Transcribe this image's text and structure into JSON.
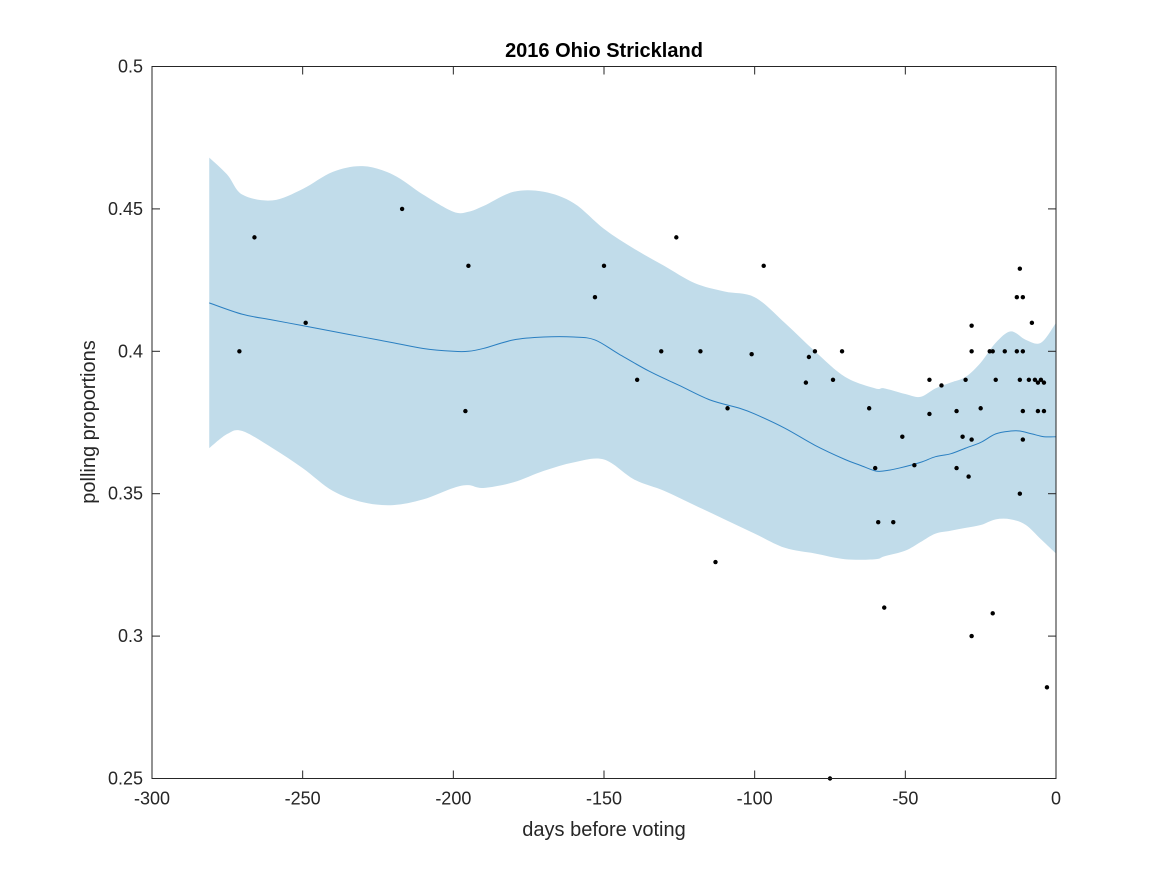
{
  "chart_data": {
    "type": "scatter",
    "title": "2016 Ohio Strickland",
    "xlabel": "days before voting",
    "ylabel": "polling proportions",
    "xlim": [
      -300,
      0
    ],
    "ylim": [
      0.25,
      0.5
    ],
    "xticks": [
      -300,
      -250,
      -200,
      -150,
      -100,
      -50,
      0
    ],
    "yticks": [
      0.25,
      0.3,
      0.35,
      0.4,
      0.45,
      0.5
    ],
    "xtick_labels": [
      "-300",
      "-250",
      "-200",
      "-150",
      "-100",
      "-50",
      "0"
    ],
    "ytick_labels": [
      "0.25",
      "0.3",
      "0.35",
      "0.4",
      "0.45",
      "0.5"
    ],
    "grid": false,
    "colors": {
      "band": "#c1dcea",
      "trend": "#2a7fc1",
      "points": "#000000"
    },
    "trend": {
      "x": [
        -281,
        -270,
        -260,
        -250,
        -240,
        -230,
        -220,
        -210,
        -200,
        -195,
        -190,
        -180,
        -170,
        -160,
        -153,
        -145,
        -135,
        -125,
        -115,
        -105,
        -100,
        -90,
        -80,
        -70,
        -65,
        -60,
        -57,
        -52,
        -45,
        -40,
        -35,
        -30,
        -25,
        -20,
        -15,
        -12,
        -8,
        -4,
        0
      ],
      "y": [
        0.417,
        0.413,
        0.411,
        0.409,
        0.407,
        0.405,
        0.403,
        0.401,
        0.4,
        0.4,
        0.401,
        0.404,
        0.405,
        0.405,
        0.404,
        0.399,
        0.393,
        0.388,
        0.383,
        0.38,
        0.378,
        0.373,
        0.367,
        0.362,
        0.36,
        0.358,
        0.358,
        0.359,
        0.361,
        0.363,
        0.364,
        0.366,
        0.368,
        0.371,
        0.372,
        0.372,
        0.371,
        0.37,
        0.37
      ]
    },
    "band": {
      "x": [
        -281,
        -275,
        -270,
        -260,
        -250,
        -240,
        -230,
        -220,
        -210,
        -200,
        -195,
        -190,
        -180,
        -170,
        -160,
        -150,
        -140,
        -130,
        -120,
        -110,
        -100,
        -90,
        -80,
        -70,
        -60,
        -57,
        -50,
        -45,
        -40,
        -35,
        -30,
        -25,
        -20,
        -15,
        -10,
        -5,
        0
      ],
      "upper": [
        0.468,
        0.462,
        0.455,
        0.453,
        0.457,
        0.463,
        0.465,
        0.462,
        0.455,
        0.449,
        0.449,
        0.451,
        0.456,
        0.456,
        0.452,
        0.443,
        0.436,
        0.43,
        0.424,
        0.421,
        0.419,
        0.41,
        0.4,
        0.391,
        0.387,
        0.387,
        0.385,
        0.384,
        0.387,
        0.389,
        0.391,
        0.396,
        0.403,
        0.407,
        0.404,
        0.403,
        0.41
      ],
      "lower": [
        0.366,
        0.371,
        0.372,
        0.366,
        0.359,
        0.351,
        0.347,
        0.346,
        0.348,
        0.352,
        0.353,
        0.352,
        0.354,
        0.358,
        0.361,
        0.362,
        0.355,
        0.351,
        0.346,
        0.341,
        0.336,
        0.331,
        0.329,
        0.327,
        0.327,
        0.328,
        0.33,
        0.333,
        0.336,
        0.337,
        0.338,
        0.339,
        0.341,
        0.341,
        0.339,
        0.334,
        0.329
      ]
    },
    "points": [
      [
        -271,
        0.4
      ],
      [
        -266,
        0.44
      ],
      [
        -249,
        0.41
      ],
      [
        -217,
        0.45
      ],
      [
        -196,
        0.379
      ],
      [
        -195,
        0.43
      ],
      [
        -153,
        0.419
      ],
      [
        -150,
        0.43
      ],
      [
        -139,
        0.39
      ],
      [
        -131,
        0.4
      ],
      [
        -126,
        0.44
      ],
      [
        -118,
        0.4
      ],
      [
        -113,
        0.326
      ],
      [
        -109,
        0.38
      ],
      [
        -101,
        0.399
      ],
      [
        -97,
        0.43
      ],
      [
        -83,
        0.389
      ],
      [
        -82,
        0.398
      ],
      [
        -80,
        0.4
      ],
      [
        -74,
        0.39
      ],
      [
        -75,
        0.25
      ],
      [
        -71,
        0.4
      ],
      [
        -62,
        0.38
      ],
      [
        -60,
        0.359
      ],
      [
        -59,
        0.34
      ],
      [
        -57,
        0.31
      ],
      [
        -54,
        0.34
      ],
      [
        -51,
        0.37
      ],
      [
        -47,
        0.36
      ],
      [
        -42,
        0.39
      ],
      [
        -42,
        0.378
      ],
      [
        -38,
        0.388
      ],
      [
        -33,
        0.379
      ],
      [
        -33,
        0.359
      ],
      [
        -31,
        0.37
      ],
      [
        -30,
        0.39
      ],
      [
        -29,
        0.356
      ],
      [
        -28,
        0.409
      ],
      [
        -28,
        0.4
      ],
      [
        -28,
        0.369
      ],
      [
        -28,
        0.3
      ],
      [
        -25,
        0.38
      ],
      [
        -22,
        0.4
      ],
      [
        -21,
        0.4
      ],
      [
        -21,
        0.308
      ],
      [
        -20,
        0.39
      ],
      [
        -17,
        0.4
      ],
      [
        -13,
        0.419
      ],
      [
        -13,
        0.4
      ],
      [
        -12,
        0.429
      ],
      [
        -12,
        0.39
      ],
      [
        -12,
        0.35
      ],
      [
        -11,
        0.419
      ],
      [
        -11,
        0.4
      ],
      [
        -11,
        0.379
      ],
      [
        -11,
        0.369
      ],
      [
        -9,
        0.39
      ],
      [
        -8,
        0.41
      ],
      [
        -7,
        0.39
      ],
      [
        -6,
        0.389
      ],
      [
        -6,
        0.379
      ],
      [
        -5,
        0.39
      ],
      [
        -4,
        0.389
      ],
      [
        -4,
        0.379
      ],
      [
        -3,
        0.282
      ]
    ]
  }
}
